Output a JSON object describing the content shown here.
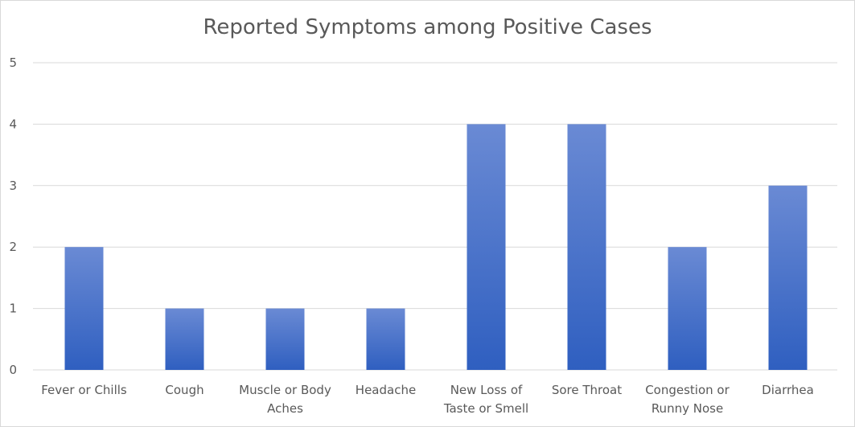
{
  "chart_data": {
    "type": "bar",
    "title": "Reported Symptoms among Positive Cases",
    "categories": [
      [
        "Fever or Chills"
      ],
      [
        "Cough"
      ],
      [
        "Muscle or Body",
        "Aches"
      ],
      [
        "Headache"
      ],
      [
        "New Loss of",
        "Taste or Smell"
      ],
      [
        "Sore Throat"
      ],
      [
        "Congestion or",
        "Runny Nose"
      ],
      [
        "Diarrhea"
      ]
    ],
    "values": [
      2,
      1,
      1,
      1,
      4,
      4,
      2,
      3
    ],
    "ylim": [
      0,
      5
    ],
    "yticks": [
      "0",
      "1",
      "2",
      "3",
      "4",
      "5"
    ],
    "xlabel": "",
    "ylabel": "",
    "grid": true,
    "legend": "none",
    "colors": {
      "bar_top": "#6a8ad4",
      "bar_bottom": "#2f5fc0",
      "grid": "#d9d9d9",
      "text": "#595959"
    }
  }
}
